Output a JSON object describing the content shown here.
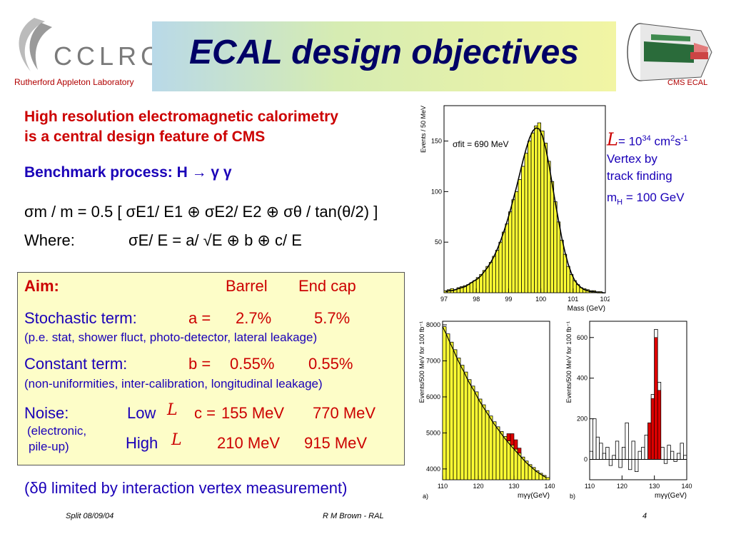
{
  "header": {
    "logo_text": "CCLRC",
    "lab_name": "Rutherford Appleton Laboratory",
    "title": "ECAL design objectives",
    "detector_caption": "CMS ECAL"
  },
  "intro": {
    "line1": "High resolution electromagnetic calorimetry",
    "line2": "is a central design feature of CMS",
    "benchmark": "Benchmark process: H → γ γ"
  },
  "formula": {
    "line1": "σm / m = 0.5 [ σE1/ E1 ⊕ σE2/ E2 ⊕ σθ / tan(θ/2) ]",
    "where": "Where:",
    "line2": "σE/ E = a/ √E ⊕ b ⊕ c/ E"
  },
  "aim": {
    "label": "Aim:",
    "col_barrel": "Barrel",
    "col_endcap": "End cap",
    "stochastic_label": "Stochastic term:",
    "stochastic_sym": "a =",
    "stochastic_barrel": "2.7%",
    "stochastic_endcap": "5.7%",
    "stochastic_note": "(p.e. stat, shower fluct, photo-detector, lateral leakage)",
    "constant_label": "Constant term:",
    "constant_sym": "b =",
    "constant_barrel": "0.55%",
    "constant_endcap": "0.55%",
    "constant_note": "(non-uniformities, inter-calibration, longitudinal leakage)",
    "noise_label": "Noise:",
    "noise_low": "Low",
    "noise_sym": "c = ",
    "noise_low_barrel": "155 MeV",
    "noise_low_endcap": "770 MeV",
    "noise_note1": "(electronic,",
    "noise_note2": "pile-up)",
    "noise_high": "High",
    "noise_high_barrel": "210 MeV",
    "noise_high_endcap": "915 MeV",
    "lum_symbol": "L"
  },
  "bottom_note": "(δθ limited by interaction vertex measurement)",
  "right_notes": {
    "lum_value": "= 10",
    "lum_exp": "34",
    "lum_units": " cm",
    "lum_units_exp": "2",
    "lum_units2": "s",
    "lum_units2_exp": "-1",
    "vertex1": "Vertex by",
    "vertex2": "track finding",
    "mass": "m",
    "mass_sub": "H",
    "mass_val": " = 100 GeV"
  },
  "footer": {
    "left": "Split 08/09/04",
    "center": "R M Brown - RAL",
    "page": "4"
  },
  "colors": {
    "fill_yellow": "#ffff33",
    "signal_red": "#dd0000",
    "title_blue": "#000066",
    "accent_red": "#cc0000",
    "text_blue": "#1a00b8"
  },
  "chart_data": [
    {
      "type": "bar",
      "annotation": "σfit = 690 MeV",
      "xlabel": "Mass (GeV)",
      "ylabel": "Events / 50 MeV",
      "xlim": [
        97,
        102
      ],
      "ylim": [
        0,
        185
      ],
      "xticks": [
        "97",
        "98",
        "99",
        "100",
        "101",
        "102"
      ],
      "yticks": [
        "50",
        "100",
        "150"
      ],
      "x": [
        97.0,
        97.1,
        97.2,
        97.3,
        97.4,
        97.5,
        97.6,
        97.7,
        97.8,
        97.9,
        98.0,
        98.1,
        98.2,
        98.3,
        98.4,
        98.5,
        98.6,
        98.7,
        98.8,
        98.9,
        99.0,
        99.1,
        99.2,
        99.3,
        99.4,
        99.5,
        99.6,
        99.7,
        99.8,
        99.9,
        100.0,
        100.1,
        100.2,
        100.3,
        100.4,
        100.5,
        100.6,
        100.7,
        100.8,
        100.9,
        101.0,
        101.1,
        101.2,
        101.3,
        101.4,
        101.5,
        101.6,
        101.7,
        101.8,
        101.9
      ],
      "values": [
        2,
        3,
        4,
        3,
        5,
        6,
        7,
        8,
        10,
        12,
        15,
        18,
        22,
        26,
        30,
        36,
        42,
        50,
        60,
        68,
        80,
        92,
        100,
        112,
        125,
        138,
        150,
        158,
        165,
        168,
        160,
        148,
        130,
        110,
        90,
        70,
        52,
        38,
        26,
        18,
        12,
        8,
        5,
        4,
        3,
        2,
        2,
        1,
        1,
        0
      ],
      "fit": [
        1,
        2,
        2,
        3,
        4,
        5,
        6,
        8,
        10,
        12,
        14,
        17,
        21,
        25,
        30,
        36,
        43,
        51,
        60,
        70,
        81,
        93,
        105,
        118,
        131,
        143,
        153,
        160,
        163,
        162,
        155,
        143,
        127,
        108,
        89,
        71,
        54,
        40,
        28,
        19,
        12,
        8,
        5,
        3,
        2,
        1,
        1,
        0,
        0,
        0
      ]
    },
    {
      "type": "bar",
      "panel_label": "a)",
      "xlabel": "mγγ(GeV)",
      "ylabel": "Events/500 MeV for 100 fb⁻¹",
      "xlim": [
        110,
        140
      ],
      "ylim": [
        3700,
        8100
      ],
      "xticks": [
        "110",
        "120",
        "130",
        "140"
      ],
      "yticks": [
        "4000",
        "5000",
        "6000",
        "7000",
        "8000"
      ],
      "x": [
        110,
        111,
        112,
        113,
        114,
        115,
        116,
        117,
        118,
        119,
        120,
        121,
        122,
        123,
        124,
        125,
        126,
        127,
        128,
        129,
        130,
        131,
        132,
        133,
        134,
        135,
        136,
        137,
        138,
        139
      ],
      "background": [
        7950,
        7750,
        7520,
        7310,
        7080,
        6880,
        6690,
        6480,
        6300,
        6140,
        5940,
        5780,
        5620,
        5470,
        5310,
        5170,
        5040,
        4900,
        4780,
        4660,
        4550,
        4440,
        4330,
        4220,
        4120,
        4040,
        3950,
        3880,
        3820,
        3760
      ],
      "signal": [
        0,
        0,
        0,
        0,
        0,
        0,
        0,
        0,
        0,
        0,
        0,
        0,
        0,
        0,
        0,
        0,
        0,
        0,
        200,
        320,
        260,
        140,
        0,
        0,
        0,
        0,
        0,
        0,
        0,
        0
      ]
    },
    {
      "type": "bar",
      "panel_label": "b)",
      "xlabel": "mγγ(GeV)",
      "ylabel": "Events/500 MeV for 100 fb⁻¹",
      "xlim": [
        110,
        140
      ],
      "ylim": [
        -100,
        680
      ],
      "xticks": [
        "110",
        "120",
        "130",
        "140"
      ],
      "yticks": [
        "0",
        "200",
        "400",
        "600"
      ],
      "x": [
        110,
        111,
        112,
        113,
        114,
        115,
        116,
        117,
        118,
        119,
        120,
        121,
        122,
        123,
        124,
        125,
        126,
        127,
        128,
        129,
        130,
        131,
        132,
        133,
        134,
        135,
        136,
        137,
        138,
        139
      ],
      "background_subtracted": [
        40,
        200,
        110,
        80,
        30,
        60,
        -30,
        20,
        90,
        -40,
        60,
        180,
        -50,
        90,
        -60,
        40,
        60,
        120,
        180,
        320,
        640,
        380,
        60,
        -20,
        70,
        40,
        -10,
        30,
        80,
        20
      ],
      "signal": [
        0,
        0,
        0,
        0,
        0,
        0,
        0,
        0,
        0,
        0,
        0,
        0,
        0,
        0,
        0,
        0,
        0,
        0,
        180,
        300,
        600,
        340,
        0,
        0,
        0,
        0,
        0,
        0,
        0,
        0
      ]
    }
  ]
}
